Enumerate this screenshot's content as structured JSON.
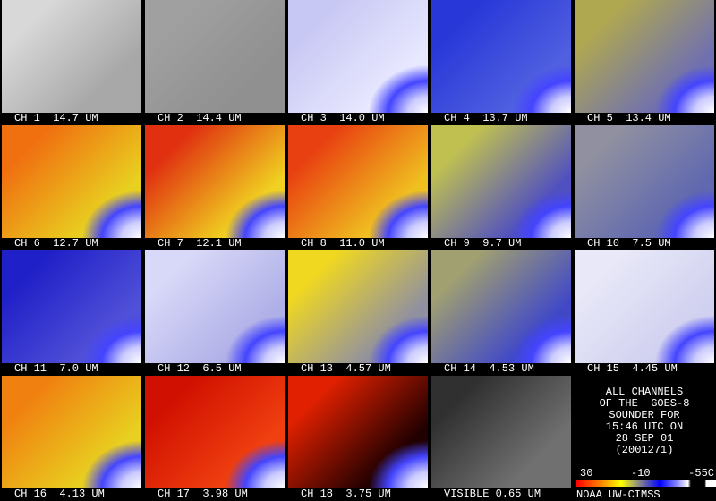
{
  "panels": [
    {
      "label": "CH 1  14.7 UM"
    },
    {
      "label": "CH 2  14.4 UM"
    },
    {
      "label": "CH 3  14.0 UM"
    },
    {
      "label": "CH 4  13.7 UM"
    },
    {
      "label": "CH 5  13.4 UM"
    },
    {
      "label": "CH 6  12.7 UM"
    },
    {
      "label": "CH 7  12.1 UM"
    },
    {
      "label": "CH 8  11.0 UM"
    },
    {
      "label": "CH 9  9.7 UM"
    },
    {
      "label": "CH 10  7.5 UM"
    },
    {
      "label": "CH 11  7.0 UM"
    },
    {
      "label": "CH 12  6.5 UM"
    },
    {
      "label": "CH 13  4.57 UM"
    },
    {
      "label": "CH 14  4.53 UM"
    },
    {
      "label": "CH 15  4.45 UM"
    },
    {
      "label": "CH 16  4.13 UM"
    },
    {
      "label": "CH 17  3.98 UM"
    },
    {
      "label": "CH 18  3.75 UM"
    },
    {
      "label": "VISIBLE 0.65 UM"
    }
  ],
  "info": {
    "lines": [
      "ALL CHANNELS",
      "OF THE  GOES-8",
      "SOUNDER FOR",
      "15:46 UTC ON",
      "28 SEP 01",
      "(2001271)"
    ],
    "scale_labels": [
      "30",
      "-10",
      "-55C"
    ],
    "credit": "NOAA UW-CIMSS"
  }
}
